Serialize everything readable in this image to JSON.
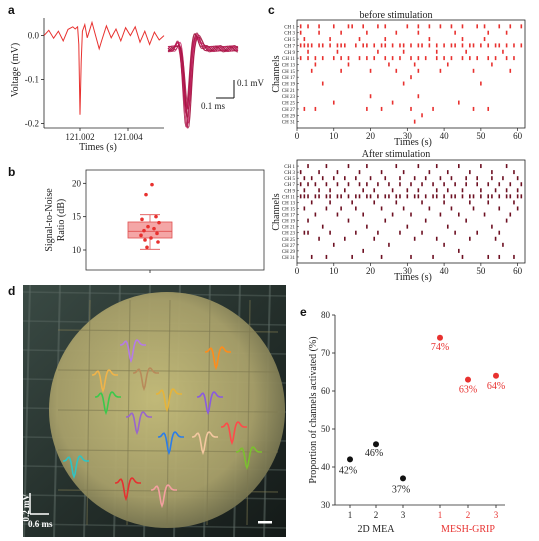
{
  "panels": {
    "a": {
      "letter": "a",
      "ylabel": "Voltage (mV)",
      "xlabel": "Times (s)",
      "yticks": [
        "0.0",
        "-0.1",
        "-0.2"
      ],
      "xticks": [
        "121.002",
        "121.004"
      ],
      "scalebar_v": "0.1 mV",
      "scalebar_t": "0.1 ms",
      "trace_color": "#e8312f",
      "overlay_color": "#c2185b"
    },
    "b": {
      "letter": "b",
      "ylabel_line1": "Signal-to-Noise",
      "ylabel_line2": "Ratio (dB)",
      "yticks": [
        "20",
        "15",
        "10"
      ],
      "box_color": "#f4a6a6",
      "dot_color": "#e8312f"
    },
    "c": {
      "letter": "c",
      "top_title": "before stimulation",
      "bottom_title": "After stimulation",
      "ylabel": "Channels",
      "xlabel": "Times (s)",
      "xticks": [
        "0",
        "10",
        "20",
        "30",
        "40",
        "50",
        "60"
      ],
      "channels": [
        "CH 1",
        "CH 3",
        "CH 5",
        "CH 7",
        "CH 9",
        "CH 11",
        "CH 13",
        "CH 15",
        "CH 17",
        "CH 19",
        "CH 21",
        "CH 23",
        "CH 25",
        "CH 27",
        "CH 29",
        "CH 31"
      ],
      "before_color": "#e8312f",
      "after_color": "#6d1022"
    },
    "d": {
      "letter": "d",
      "scalebar_v": "0.2 mV",
      "scalebar_t": "0.6 ms"
    },
    "e": {
      "letter": "e",
      "ylabel": "Proportion of channels activated (%)",
      "group1_label": "2D MEA",
      "group2_label": "MESH-GRIP",
      "group1_color": "#111111",
      "group2_color": "#e8312f"
    }
  },
  "chart_data": [
    {
      "type": "line",
      "panel": "a",
      "xlabel": "Times (s)",
      "ylabel": "Voltage (mV)",
      "xlim": [
        121.0005,
        121.0055
      ],
      "ylim": [
        -0.21,
        0.04
      ],
      "series": [
        {
          "x": [
            121.0005,
            121.0007,
            121.0009,
            121.0011,
            121.0013,
            121.0015,
            121.0017,
            121.0018,
            121.0019,
            121.00195,
            121.002,
            121.00205,
            121.0021,
            121.0022,
            121.0023,
            121.0024,
            121.0025,
            121.00265,
            121.0028,
            121.0029,
            121.0031,
            121.0033,
            121.0035,
            121.0037,
            121.0039,
            121.0041,
            121.0043,
            121.0045,
            121.0047,
            121.0049,
            121.0051,
            121.0053,
            121.0055
          ],
          "y": [
            0.0,
            0.012,
            -0.006,
            0.01,
            -0.012,
            0.014,
            0.02,
            0.015,
            0.02,
            -0.02,
            -0.18,
            -0.06,
            0.01,
            0.025,
            -0.005,
            0.012,
            0.03,
            0.0,
            -0.03,
            -0.012,
            0.022,
            -0.005,
            0.015,
            -0.012,
            0.018,
            0.0,
            0.02,
            -0.015,
            0.01,
            -0.02,
            0.008,
            -0.01,
            0.0
          ]
        }
      ]
    },
    {
      "type": "scatter",
      "panel": "b",
      "ylabel": "Signal-to-Noise Ratio (dB)",
      "ylim": [
        7,
        22
      ],
      "box": {
        "q1": 11.8,
        "median": 12.8,
        "q3": 14.2,
        "whisker_low": 10.1,
        "whisker_high": 15.3
      },
      "values": [
        19.8,
        18.3,
        15.0,
        14.6,
        14.1,
        13.5,
        13.2,
        12.9,
        12.5,
        12.2,
        11.8,
        11.5,
        11.2,
        10.4
      ]
    },
    {
      "type": "scatter",
      "panel": "c",
      "subtitle": "before stimulation",
      "xlabel": "Times (s)",
      "ylabel": "Channels",
      "xlim": [
        0,
        62
      ],
      "events": [
        {
          "channel": "CH 1",
          "times": [
            1,
            3,
            6,
            10,
            14,
            15,
            18,
            22,
            24,
            30,
            33,
            36,
            39,
            42,
            45,
            49,
            51,
            55,
            58,
            61
          ]
        },
        {
          "channel": "CH 3",
          "times": [
            1,
            6,
            12,
            19,
            27,
            33,
            43,
            52,
            57
          ]
        },
        {
          "channel": "CH 5",
          "times": [
            2,
            9,
            17,
            24,
            36,
            45,
            51
          ]
        },
        {
          "channel": "CH 7",
          "times": [
            1,
            2,
            3,
            4,
            6,
            7,
            9,
            11,
            12,
            13,
            16,
            18,
            19,
            21,
            23,
            24,
            26,
            28,
            29,
            31,
            33,
            34,
            36,
            38,
            40,
            42,
            43,
            45,
            47,
            48,
            50,
            52,
            54,
            55,
            57,
            59,
            61
          ]
        },
        {
          "channel": "CH 9",
          "times": [
            3,
            11,
            22,
            29,
            38,
            46,
            56
          ]
        },
        {
          "channel": "CH 11",
          "times": [
            1,
            3,
            5,
            7,
            10,
            12,
            14,
            17,
            19,
            21,
            24,
            26,
            28,
            31,
            33,
            35,
            38,
            40,
            42,
            45,
            47,
            49,
            52,
            54,
            57,
            59
          ]
        },
        {
          "channel": "CH 13",
          "times": [
            5,
            14,
            25,
            32,
            41,
            53
          ]
        },
        {
          "channel": "CH 15",
          "times": [
            4,
            12,
            20,
            27,
            33,
            39,
            48,
            58
          ]
        },
        {
          "channel": "CH 17",
          "times": [
            31
          ]
        },
        {
          "channel": "CH 19",
          "times": [
            7,
            29,
            50
          ]
        },
        {
          "channel": "CH 23",
          "times": [
            20,
            33
          ]
        },
        {
          "channel": "CH 25",
          "times": [
            10,
            26,
            44
          ]
        },
        {
          "channel": "CH 27",
          "times": [
            2,
            5,
            19,
            23,
            31,
            37,
            48,
            52
          ]
        },
        {
          "channel": "CH 29",
          "times": [
            34
          ]
        },
        {
          "channel": "CH 31",
          "times": [
            32
          ]
        }
      ]
    },
    {
      "type": "scatter",
      "panel": "c",
      "subtitle": "After stimulation",
      "xlabel": "Times (s)",
      "ylabel": "Channels",
      "xlim": [
        0,
        62
      ],
      "events": [
        {
          "channel": "CH 1",
          "times": [
            3,
            8,
            14,
            19,
            27,
            33,
            38,
            44,
            50,
            57
          ]
        },
        {
          "channel": "CH 3",
          "times": [
            1,
            6,
            11,
            17,
            23,
            29,
            36,
            41,
            47,
            53,
            59
          ]
        },
        {
          "channel": "CH 5",
          "times": [
            2,
            4,
            7,
            10,
            13,
            16,
            20,
            24,
            28,
            32,
            35,
            39,
            42,
            46,
            49,
            53,
            56,
            60
          ]
        },
        {
          "channel": "CH 7",
          "times": [
            1,
            3,
            5,
            8,
            11,
            14,
            17,
            19,
            22,
            25,
            28,
            31,
            34,
            37,
            40,
            43,
            46,
            49,
            52,
            55,
            58,
            61
          ]
        },
        {
          "channel": "CH 9",
          "times": [
            2,
            6,
            9,
            13,
            18,
            21,
            26,
            30,
            33,
            38,
            41,
            45,
            50,
            54,
            57,
            60
          ]
        },
        {
          "channel": "CH 11",
          "times": [
            1,
            2,
            3,
            5,
            6,
            8,
            9,
            11,
            12,
            14,
            16,
            17,
            19,
            20,
            22,
            24,
            25,
            27,
            28,
            30,
            32,
            33,
            35,
            37,
            38,
            40,
            42,
            43,
            45,
            47,
            48,
            50,
            52,
            53,
            55,
            57,
            58,
            60,
            61
          ]
        },
        {
          "channel": "CH 13",
          "times": [
            4,
            9,
            15,
            21,
            27,
            34,
            40,
            47,
            52,
            59
          ]
        },
        {
          "channel": "CH 15",
          "times": [
            2,
            8,
            12,
            16,
            23,
            29,
            36,
            42,
            48,
            55,
            60
          ]
        },
        {
          "channel": "CH 17",
          "times": [
            5,
            11,
            18,
            26,
            31,
            39,
            44,
            51,
            58
          ]
        },
        {
          "channel": "CH 19",
          "times": [
            3,
            14,
            24,
            35,
            46,
            57
          ]
        },
        {
          "channel": "CH 21",
          "times": [
            7,
            19,
            30,
            41,
            53
          ]
        },
        {
          "channel": "CH 23",
          "times": [
            2,
            3,
            9,
            16,
            22,
            28,
            34,
            43,
            49,
            55
          ]
        },
        {
          "channel": "CH 25",
          "times": [
            6,
            13,
            21,
            32,
            38,
            47,
            54
          ]
        },
        {
          "channel": "CH 27",
          "times": [
            10,
            25,
            40,
            56
          ]
        },
        {
          "channel": "CH 29",
          "times": [
            18,
            44
          ]
        },
        {
          "channel": "CH 31",
          "times": [
            4,
            8,
            15,
            23,
            31,
            37,
            45,
            52,
            55,
            59
          ]
        }
      ]
    },
    {
      "type": "scatter",
      "panel": "e",
      "ylabel": "Proportion of channels activated (%)",
      "ylim": [
        30,
        80
      ],
      "yticks": [
        30,
        40,
        50,
        60,
        70,
        80
      ],
      "categories": [
        "1",
        "2",
        "3",
        "1",
        "2",
        "3"
      ],
      "series": [
        {
          "name": "2D MEA",
          "color": "#111111",
          "values": [
            42,
            46,
            37
          ],
          "labels": [
            "42%",
            "46%",
            "37%"
          ]
        },
        {
          "name": "MESH-GRIP",
          "color": "#e8312f",
          "values": [
            74,
            63,
            64
          ],
          "labels": [
            "74%",
            "63%",
            "64%"
          ]
        }
      ]
    }
  ]
}
